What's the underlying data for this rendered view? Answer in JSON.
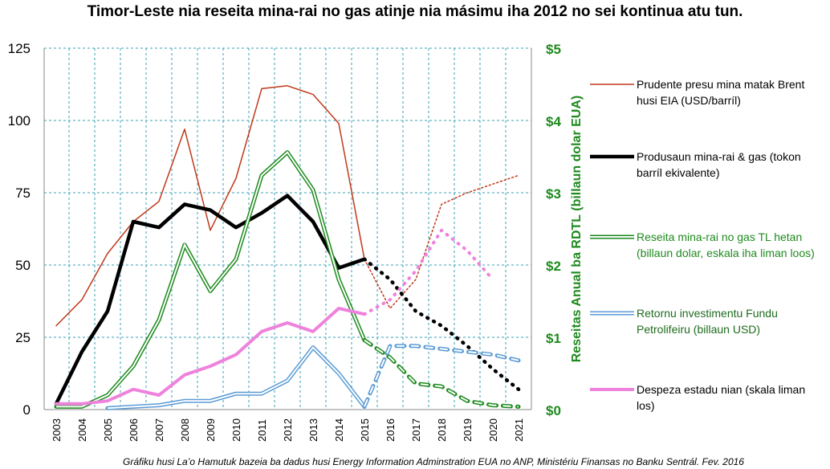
{
  "chart_data": {
    "type": "line",
    "title": "Timor-Leste nia reseita mina-rai no gas atinje nia másimu iha 2012 no sei kontinua atu tun.",
    "footnote": "Gráfiku husi La’o Hamutuk bazeia ba dadus husi Energy Information Adminstration EUA no ANP, Ministériu Finansas no Banku Sentrál. Fev. 2016",
    "y2label": "Reseitas Anual ba RDTL (billaun dolar EUA)",
    "categories": [
      "2003",
      "2004",
      "2005",
      "2006",
      "2007",
      "2008",
      "2009",
      "2010",
      "2011",
      "2012",
      "2013",
      "2014",
      "2015",
      "2016",
      "2017",
      "2018",
      "2019",
      "2020",
      "2021"
    ],
    "projected_from": "2015",
    "ylim": [
      0,
      125
    ],
    "yticks": [
      0,
      25,
      50,
      75,
      100,
      125
    ],
    "y2lim": [
      0,
      5
    ],
    "y2ticks": [
      {
        "value": 0,
        "label": "$0"
      },
      {
        "value": 1,
        "label": "$1"
      },
      {
        "value": 2,
        "label": "$2"
      },
      {
        "value": 3,
        "label": "$3"
      },
      {
        "value": 4,
        "label": "$4"
      },
      {
        "value": 5,
        "label": "$5"
      }
    ],
    "grid": true,
    "series": [
      {
        "name": "Prudente presu mina matak Brent husi EIA (USD/barríl)",
        "color": "#c0391b",
        "style": "thin",
        "values": [
          29,
          38,
          54,
          65,
          72,
          97,
          62,
          80,
          111,
          112,
          109,
          99,
          52,
          35,
          45,
          71,
          75,
          78,
          81
        ]
      },
      {
        "name": "Produsaun mina-rai & gas (tokon barríl ekivalente)",
        "color": "#000000",
        "style": "thick",
        "values": [
          2,
          20,
          34,
          65,
          63,
          71,
          69,
          63,
          68,
          74,
          65,
          49,
          52,
          45,
          34,
          29,
          22,
          14,
          7
        ]
      },
      {
        "name": "Reseita mina-rai no gas TL hetan (billaun dolar, eskala iha liman loos)",
        "color": "#1e8a1e",
        "style": "double",
        "axis": "y2",
        "label_color": "#1e8a1e",
        "values": [
          0.04,
          0.04,
          0.2,
          0.6,
          1.24,
          2.28,
          1.64,
          2.08,
          3.24,
          3.56,
          3.04,
          1.8,
          0.96,
          0.72,
          0.36,
          0.32,
          0.12,
          0.06,
          0.04
        ]
      },
      {
        "name": "Retornu investimentu Fundu Petrolifeiru (billaun USD)",
        "color": "#5b9bd5",
        "style": "double",
        "axis": "y2",
        "label_color": "#1e6b1e",
        "values": [
          null,
          null,
          0.02,
          0.04,
          0.06,
          0.12,
          0.12,
          0.22,
          0.22,
          0.4,
          0.86,
          0.5,
          0.04,
          0.88,
          0.88,
          0.84,
          0.8,
          0.76,
          0.68
        ]
      },
      {
        "name": "Despeza estadu nian (skala liman los)",
        "color": "#ee82dd",
        "style": "medium",
        "axis": "y2",
        "values": [
          0.08,
          0.08,
          0.12,
          0.28,
          0.2,
          0.48,
          0.6,
          0.76,
          1.08,
          1.2,
          1.08,
          1.4,
          1.32,
          1.52,
          1.92,
          2.48,
          2.2,
          1.8,
          null
        ]
      }
    ]
  }
}
